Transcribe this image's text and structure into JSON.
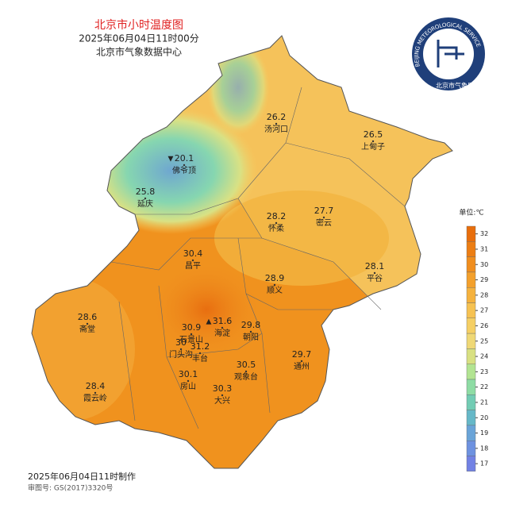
{
  "header": {
    "title": "北京市小时温度图",
    "time": "2025年06月04日11时00分",
    "org": "北京市气象数据中心"
  },
  "logo": {
    "ring": "BEIJING METEOROLOGICAL SERVICE",
    "name": "北京市气象局"
  },
  "stations": [
    {
      "name": "汤河口",
      "temp": 26.2
    },
    {
      "name": "上甸子",
      "temp": 26.5
    },
    {
      "name": "佛爷顶",
      "temp": 20.1,
      "marker": "▼"
    },
    {
      "name": "延庆",
      "temp": 25.8
    },
    {
      "name": "怀柔",
      "temp": 28.2
    },
    {
      "name": "密云",
      "temp": 27.7
    },
    {
      "name": "昌平",
      "temp": 30.4
    },
    {
      "name": "平谷",
      "temp": 28.1
    },
    {
      "name": "顺义",
      "temp": 28.9
    },
    {
      "name": "斋堂",
      "temp": 28.6
    },
    {
      "name": "海淀",
      "temp": 31.6,
      "marker": "▲"
    },
    {
      "name": "石景山",
      "temp": 30.9
    },
    {
      "name": "朝阳",
      "temp": 29.8
    },
    {
      "name": "门头沟",
      "temp": 30
    },
    {
      "name": "丰台",
      "temp": 31.2
    },
    {
      "name": "通州",
      "temp": 29.7
    },
    {
      "name": "观象台",
      "temp": 30.5
    },
    {
      "name": "房山",
      "temp": 30.1
    },
    {
      "name": "大兴",
      "temp": 30.3
    },
    {
      "name": "霞云岭",
      "temp": 28.4
    }
  ],
  "legend": {
    "unit": "单位:℃",
    "ticks": [
      32,
      31,
      30,
      29,
      28,
      27,
      26,
      25,
      24,
      23,
      22,
      21,
      20,
      19,
      18,
      17
    ],
    "colors": [
      "#e86e0c",
      "#ec7e14",
      "#f08e1e",
      "#f3a02c",
      "#f5b23e",
      "#f6c252",
      "#f5cf64",
      "#efd876",
      "#d8e082",
      "#b2e492",
      "#8edca4",
      "#72ccb4",
      "#66b8c8",
      "#6aa4d8",
      "#6e92e0",
      "#7282e4"
    ]
  },
  "footer": {
    "made": "2025年06月04日11时制作",
    "approval": "审图号: GS(2017)3320号"
  }
}
